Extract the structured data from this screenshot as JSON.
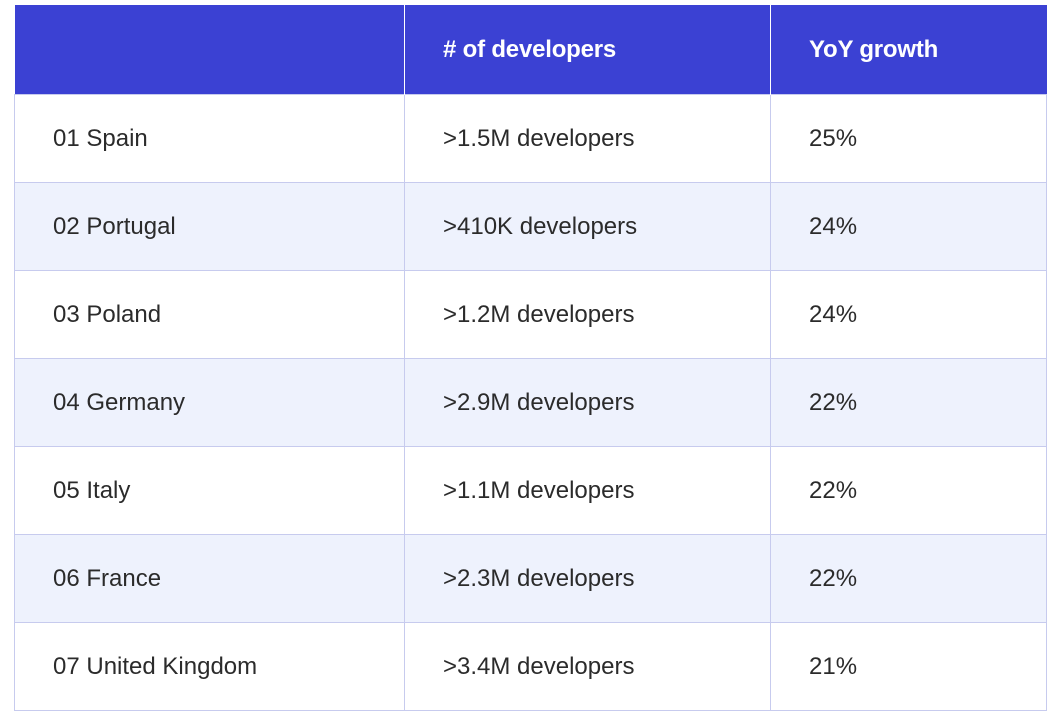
{
  "table": {
    "headers": [
      "",
      "# of developers",
      "YoY growth"
    ],
    "rows": [
      {
        "country": "01 Spain",
        "developers": ">1.5M developers",
        "growth": "25%"
      },
      {
        "country": "02 Portugal",
        "developers": ">410K developers",
        "growth": "24%"
      },
      {
        "country": "03 Poland",
        "developers": ">1.2M developers",
        "growth": "24%"
      },
      {
        "country": "04 Germany",
        "developers": ">2.9M developers",
        "growth": "22%"
      },
      {
        "country": "05 Italy",
        "developers": ">1.1M developers",
        "growth": "22%"
      },
      {
        "country": "06 France",
        "developers": ">2.3M developers",
        "growth": "22%"
      },
      {
        "country": "07 United Kingdom",
        "developers": ">3.4M developers",
        "growth": "21%"
      }
    ]
  },
  "colors": {
    "header_background": "#3b41d3",
    "header_text": "#ffffff",
    "row_alt_background": "#eef2fd",
    "border": "#c7cbee",
    "body_text": "#2b2b2b"
  }
}
